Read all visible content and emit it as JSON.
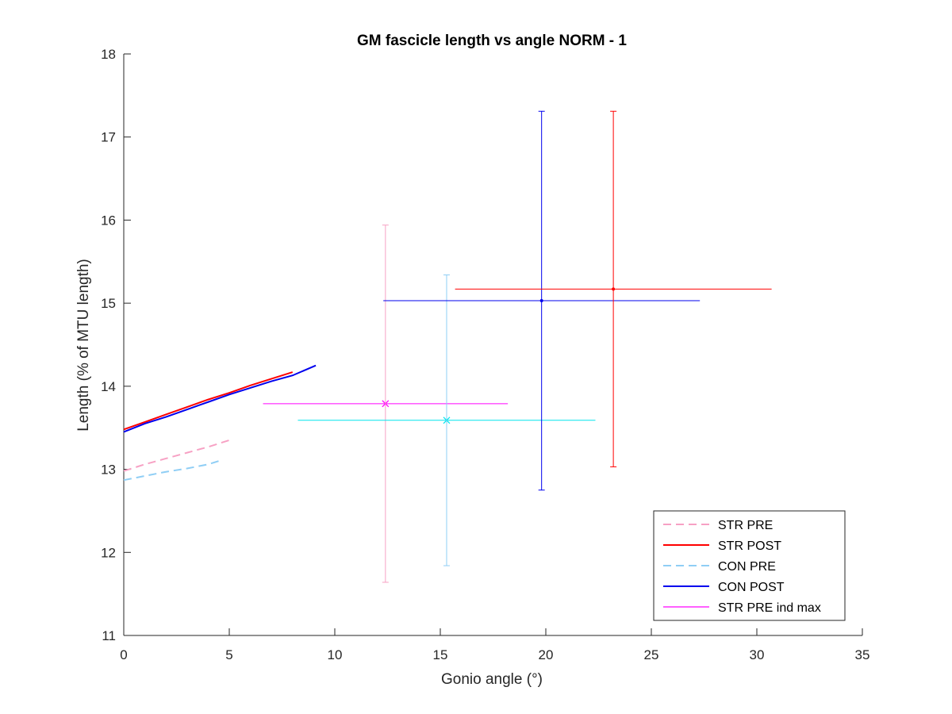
{
  "chart_data": {
    "type": "line",
    "title": "GM fascicle length vs angle NORM - 1",
    "xlabel": "Gonio angle (°)",
    "ylabel": "Length (% of MTU length)",
    "xlim": [
      0,
      35
    ],
    "ylim": [
      11,
      18
    ],
    "xticks": [
      0,
      5,
      10,
      15,
      20,
      25,
      30,
      35
    ],
    "yticks": [
      11,
      12,
      13,
      14,
      15,
      16,
      17,
      18
    ],
    "xtick_labels": [
      "0",
      "5",
      "10",
      "15",
      "20",
      "25",
      "30",
      "35"
    ],
    "ytick_labels": [
      "11",
      "12",
      "13",
      "14",
      "15",
      "16",
      "17",
      "18"
    ],
    "grid": false,
    "legend_position": "bottom-right",
    "series": [
      {
        "name": "STR PRE",
        "color": "#f7a1c4",
        "dash": "dashed",
        "x": [
          0,
          1,
          2,
          3,
          4,
          5
        ],
        "y": [
          12.98,
          13.06,
          13.13,
          13.2,
          13.27,
          13.35
        ]
      },
      {
        "name": "STR POST",
        "color": "#ff0000",
        "dash": "solid",
        "x": [
          0,
          1,
          2,
          3,
          4,
          5,
          6,
          7,
          8
        ],
        "y": [
          13.48,
          13.57,
          13.66,
          13.75,
          13.84,
          13.92,
          14.01,
          14.09,
          14.17
        ]
      },
      {
        "name": "CON PRE",
        "color": "#8fcef5",
        "dash": "dashed",
        "x": [
          0,
          1,
          2,
          3,
          4,
          4.5
        ],
        "y": [
          12.87,
          12.92,
          12.97,
          13.01,
          13.06,
          13.1
        ]
      },
      {
        "name": "CON POST",
        "color": "#0000ee",
        "dash": "solid",
        "x": [
          0,
          1,
          2,
          3,
          4,
          5,
          6,
          7,
          8,
          9.1
        ],
        "y": [
          13.45,
          13.55,
          13.63,
          13.72,
          13.81,
          13.9,
          13.98,
          14.06,
          14.13,
          14.25
        ]
      },
      {
        "name": "STR PRE ind max",
        "color": "#ff00ff",
        "dash": "solid",
        "marker": "x",
        "x": [
          12.4
        ],
        "y": [
          13.79
        ],
        "xerr": [
          5.8
        ],
        "yerr": [
          0
        ]
      }
    ],
    "errorbars": [
      {
        "color": "#f7a1c4",
        "x": 12.4,
        "y": 13.79,
        "xerr": 0,
        "yerr_low": 2.15,
        "yerr_high": 2.15,
        "marker": "none"
      },
      {
        "color": "#00e5ee",
        "x": 15.3,
        "y": 13.59,
        "xerr": 7.05,
        "yerr_low": 0,
        "yerr_high": 0,
        "marker": "x"
      },
      {
        "color": "#8fcef5",
        "x": 15.3,
        "y": 13.59,
        "xerr": 0,
        "yerr_low": 1.75,
        "yerr_high": 1.75,
        "marker": "none"
      },
      {
        "color": "#0000ee",
        "x": 19.8,
        "y": 15.03,
        "xerr": 7.5,
        "yerr_low": 2.28,
        "yerr_high": 2.28,
        "marker": "dot"
      },
      {
        "color": "#ff0000",
        "x": 23.2,
        "y": 15.17,
        "xerr": 7.5,
        "yerr_low": 2.14,
        "yerr_high": 2.14,
        "marker": "dot"
      }
    ]
  }
}
